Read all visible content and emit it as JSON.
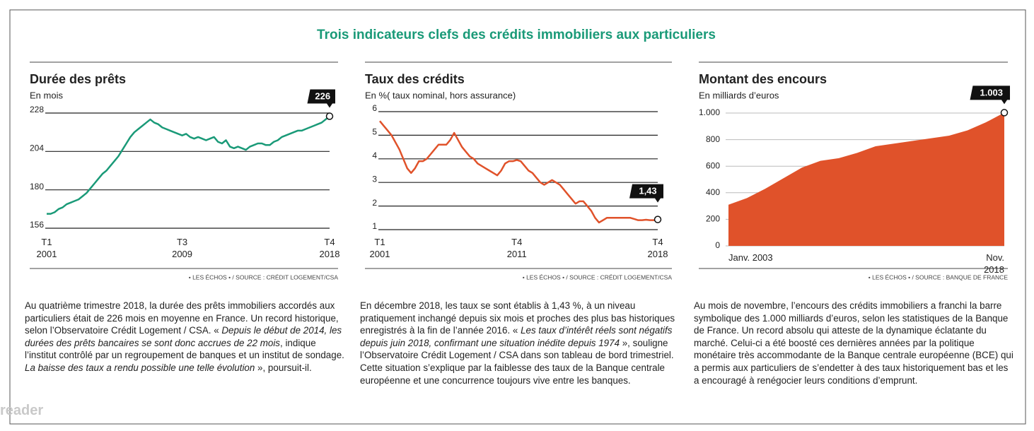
{
  "title": "Trois indicateurs clefs des crédits immobiliers aux particuliers",
  "watermark": "reader",
  "chart_data": [
    {
      "type": "line",
      "title": "Durée des prêts",
      "subtitle": "En mois",
      "color": "#1a9a78",
      "categories": [
        "T1\n2001",
        null,
        null,
        null,
        null,
        null,
        null,
        null,
        null,
        null,
        null,
        null,
        null,
        null,
        null,
        null,
        null,
        null,
        null,
        null,
        null,
        null,
        null,
        null,
        null,
        null,
        null,
        null,
        null,
        null,
        null,
        null,
        null,
        null,
        "T3\n2009",
        null,
        null,
        null,
        null,
        null,
        null,
        null,
        null,
        null,
        null,
        null,
        null,
        null,
        null,
        null,
        null,
        null,
        null,
        null,
        null,
        null,
        null,
        null,
        null,
        null,
        null,
        null,
        null,
        null,
        null,
        null,
        null,
        null,
        null,
        null,
        null,
        "T4\n2018"
      ],
      "values": [
        165,
        165,
        166,
        168,
        169,
        171,
        172,
        173,
        174,
        176,
        178,
        181,
        184,
        187,
        190,
        192,
        195,
        198,
        201,
        205,
        209,
        213,
        216,
        218,
        220,
        222,
        224,
        222,
        221,
        219,
        218,
        217,
        216,
        215,
        214,
        215,
        213,
        212,
        213,
        212,
        211,
        212,
        213,
        210,
        209,
        211,
        207,
        206,
        207,
        206,
        205,
        207,
        208,
        209,
        209,
        208,
        208,
        210,
        211,
        213,
        214,
        215,
        216,
        217,
        217,
        218,
        219,
        220,
        221,
        222,
        224,
        226
      ],
      "value_labels": [
        null,
        null,
        null,
        null,
        null,
        null,
        null,
        null,
        null,
        null,
        null,
        null,
        null,
        null,
        null,
        null,
        null,
        null,
        null,
        null,
        null,
        null,
        null,
        null,
        null,
        null,
        null,
        null,
        null,
        null,
        null,
        null,
        null,
        null,
        null,
        null,
        null,
        null,
        null,
        null,
        null,
        null,
        null,
        null,
        null,
        null,
        null,
        null,
        null,
        null,
        null,
        null,
        null,
        null,
        null,
        null,
        null,
        null,
        null,
        null,
        null,
        null,
        null,
        null,
        null,
        null,
        null,
        null,
        null,
        null,
        null,
        "226"
      ],
      "ylim": [
        156,
        228
      ],
      "yticks": [
        156,
        180,
        204,
        228
      ],
      "grid": true,
      "source": "• LES ÉCHOS • / SOURCE : CRÉDIT LOGEMENT/CSA",
      "text": [
        {
          "text": "Au quatrième trimestre 2018, la durée des prêts immobiliers accordés aux particuliers était de 226 mois en moyenne en France. Un record historique, selon l’Observatoire Crédit Logement / CSA. « ",
          "italic": false
        },
        {
          "text": "Depuis le début de 2014, les durées des prêts bancaires se sont donc accrues de 22 mois",
          "italic": true
        },
        {
          "text": ", indique l’institut contrôlé par un regroupement de banques et un institut de sondage. ",
          "italic": false
        },
        {
          "text": "La baisse des taux a rendu possible une telle évolution",
          "italic": true
        },
        {
          "text": " », poursuit-il.",
          "italic": false
        }
      ]
    },
    {
      "type": "line",
      "title": "Taux des crédits",
      "subtitle": "En %( taux nominal, hors assurance)",
      "color": "#e0522a",
      "categories": [
        "T1\n2001",
        null,
        null,
        null,
        null,
        null,
        null,
        null,
        null,
        null,
        null,
        null,
        null,
        null,
        null,
        null,
        null,
        null,
        null,
        null,
        null,
        null,
        null,
        null,
        null,
        null,
        null,
        null,
        null,
        null,
        null,
        null,
        null,
        null,
        null,
        "T4\n2011",
        null,
        null,
        null,
        null,
        null,
        null,
        null,
        null,
        null,
        null,
        null,
        null,
        null,
        null,
        null,
        null,
        null,
        null,
        null,
        null,
        null,
        null,
        null,
        null,
        null,
        null,
        null,
        null,
        null,
        null,
        null,
        null,
        null,
        null,
        null,
        "T4\n2018"
      ],
      "values": [
        5.6,
        5.4,
        5.2,
        5.0,
        4.7,
        4.4,
        4.0,
        3.6,
        3.4,
        3.6,
        3.9,
        3.9,
        4.0,
        4.2,
        4.4,
        4.6,
        4.6,
        4.6,
        4.8,
        5.1,
        4.8,
        4.5,
        4.3,
        4.1,
        4.0,
        3.8,
        3.7,
        3.6,
        3.5,
        3.4,
        3.3,
        3.5,
        3.8,
        3.9,
        3.9,
        3.95,
        3.9,
        3.7,
        3.5,
        3.4,
        3.2,
        3.0,
        2.9,
        3.0,
        3.1,
        3.0,
        2.9,
        2.7,
        2.5,
        2.3,
        2.1,
        2.2,
        2.2,
        2.0,
        1.8,
        1.5,
        1.3,
        1.4,
        1.5,
        1.5,
        1.5,
        1.5,
        1.5,
        1.5,
        1.5,
        1.45,
        1.4,
        1.4,
        1.42,
        1.4,
        1.4,
        1.43
      ],
      "value_labels": [
        null,
        null,
        null,
        null,
        null,
        null,
        null,
        null,
        null,
        null,
        null,
        null,
        null,
        null,
        null,
        null,
        null,
        null,
        null,
        null,
        null,
        null,
        null,
        null,
        null,
        null,
        null,
        null,
        null,
        null,
        null,
        null,
        null,
        null,
        null,
        null,
        null,
        null,
        null,
        null,
        null,
        null,
        null,
        null,
        null,
        null,
        null,
        null,
        null,
        null,
        null,
        null,
        null,
        null,
        null,
        null,
        null,
        null,
        null,
        null,
        null,
        null,
        null,
        null,
        null,
        null,
        null,
        null,
        null,
        null,
        null,
        "1,43"
      ],
      "ylim": [
        1,
        6
      ],
      "yticks": [
        1,
        2,
        3,
        4,
        5,
        6
      ],
      "grid": true,
      "source": "• LES ÉCHOS • / SOURCE : CRÉDIT LOGEMENT/CSA",
      "text": [
        {
          "text": "En décembre 2018, les taux se sont établis à 1,43 %, à un niveau pratiquement inchangé depuis six mois et proches des plus bas historiques enregistrés à la fin de l’année 2016. « ",
          "italic": false
        },
        {
          "text": "Les taux d’intérêt réels sont négatifs depuis juin 2018, confirmant une situation inédite depuis 1974",
          "italic": true
        },
        {
          "text": " », souligne l’Observatoire Crédit Logement / CSA dans son tableau de bord trimestriel. Cette situation s’explique par la faiblesse des taux de la Banque centrale européenne et une concurrence toujours vive entre les banques.",
          "italic": false
        }
      ]
    },
    {
      "type": "area",
      "title": "Montant des encours",
      "subtitle": "En milliards d’euros",
      "color": "#e0522a",
      "categories": [
        "Janv. 2003",
        null,
        null,
        null,
        null,
        null,
        null,
        null,
        null,
        null,
        null,
        null,
        null,
        null,
        null,
        "Nov. 2018"
      ],
      "values": [
        310,
        360,
        430,
        510,
        590,
        640,
        660,
        700,
        750,
        770,
        790,
        810,
        830,
        870,
        930,
        1003
      ],
      "value_labels": [
        null,
        null,
        null,
        null,
        null,
        null,
        null,
        null,
        null,
        null,
        null,
        null,
        null,
        null,
        null,
        "1.003"
      ],
      "ylim": [
        0,
        1000
      ],
      "yticks": [
        0,
        200,
        400,
        600,
        800,
        {
          "value": 1000,
          "label": "1.000"
        }
      ],
      "grid": true,
      "source": "• LES ÉCHOS • / SOURCE : BANQUE DE FRANCE",
      "text": [
        {
          "text": "Au mois de novembre, l’encours des crédits immobiliers a franchi la barre symbolique des 1.000 milliards d’euros, selon les statistiques de la Banque de France. Un record absolu qui atteste de la dynamique éclatante du marché. Celui-ci a été boosté ces dernières années par la politique monétaire très accommodante de la Banque centrale européenne (BCE) qui a permis aux particuliers de s’endetter à des taux historiquement bas et les a encouragé à renégocier leurs conditions d’emprunt.",
          "italic": false
        }
      ]
    }
  ]
}
